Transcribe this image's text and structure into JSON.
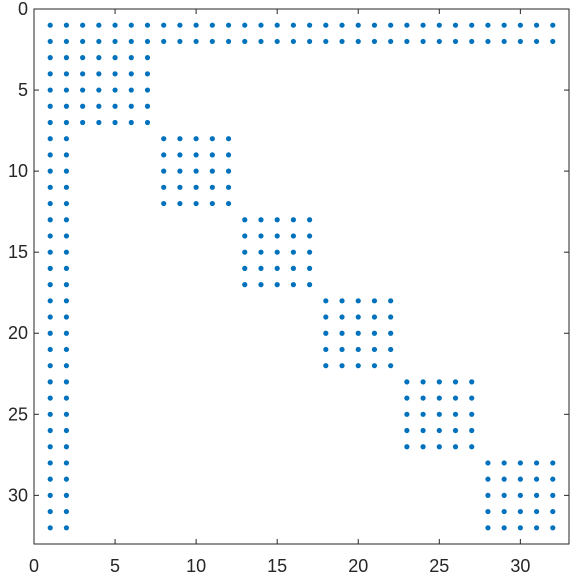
{
  "chart_data": {
    "type": "scatter",
    "title": "",
    "xlabel": "",
    "ylabel": "",
    "xlim": [
      0,
      33
    ],
    "ylim": [
      0,
      33
    ],
    "y_axis_reversed": true,
    "grid": false,
    "legend": "none",
    "marker_color": "#0072BD",
    "x_ticks": [
      0,
      5,
      10,
      15,
      20,
      25,
      30
    ],
    "y_ticks": [
      0,
      5,
      10,
      15,
      20,
      25,
      30
    ],
    "x_tick_labels": [
      "0",
      "5",
      "10",
      "15",
      "20",
      "25",
      "30"
    ],
    "y_tick_labels": [
      "0",
      "5",
      "10",
      "15",
      "20",
      "25",
      "30"
    ],
    "nonzero_pattern": {
      "matrix_size": 32,
      "full_rows": [
        1,
        2
      ],
      "full_columns": [
        1,
        2
      ],
      "diagonal_blocks": [
        {
          "rows": [
            3,
            7
          ],
          "cols": [
            3,
            7
          ]
        },
        {
          "rows": [
            8,
            12
          ],
          "cols": [
            8,
            12
          ]
        },
        {
          "rows": [
            13,
            17
          ],
          "cols": [
            13,
            17
          ]
        },
        {
          "rows": [
            18,
            22
          ],
          "cols": [
            18,
            22
          ]
        },
        {
          "rows": [
            23,
            27
          ],
          "cols": [
            23,
            27
          ]
        },
        {
          "rows": [
            28,
            32
          ],
          "cols": [
            28,
            32
          ]
        }
      ]
    }
  }
}
